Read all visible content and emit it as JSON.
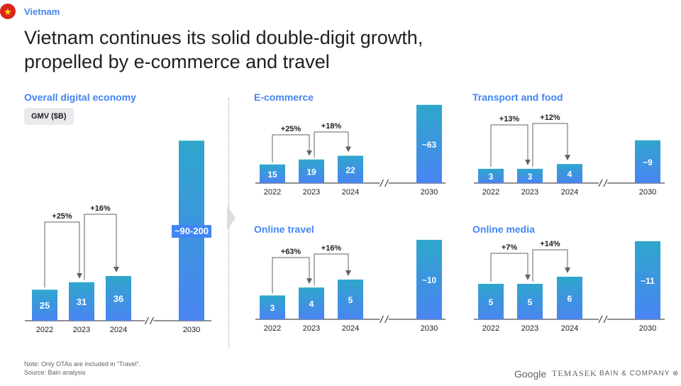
{
  "header": {
    "country": "Vietnam",
    "title_line1": "Vietnam continues its solid double-digit growth,",
    "title_line2": "propelled by e-commerce and travel",
    "flag_star": "★"
  },
  "unit_label": "GMV ($B)",
  "footnote": {
    "note": "Note: Only OTAs are included in “Travel”.",
    "source": "Source: Bain analysis"
  },
  "logos": {
    "google": "Google",
    "temasek": "TEMASEK",
    "bain": "BAIN & COMPANY ⊕"
  },
  "colors": {
    "accent": "#4285f4",
    "bar_top": "#34a0d0",
    "bar_bottom": "#4a86f0"
  },
  "chart_data": [
    {
      "type": "bar",
      "title": "Overall digital economy",
      "categories": [
        "2022",
        "2023",
        "2024",
        "2030"
      ],
      "values": [
        25,
        31,
        36,
        145
      ],
      "labels": [
        "25",
        "31",
        "36",
        "~90-200"
      ],
      "growth": [
        "+25%",
        "+16%"
      ],
      "axis_break": true
    },
    {
      "type": "bar",
      "title": "E-commerce",
      "categories": [
        "2022",
        "2023",
        "2024",
        "2030"
      ],
      "values": [
        15,
        19,
        22,
        63
      ],
      "labels": [
        "15",
        "19",
        "22",
        "~63"
      ],
      "growth": [
        "+25%",
        "+18%"
      ],
      "axis_break": true
    },
    {
      "type": "bar",
      "title": "Transport and food",
      "categories": [
        "2022",
        "2023",
        "2024",
        "2030"
      ],
      "values": [
        3,
        3,
        4,
        9
      ],
      "labels": [
        "3",
        "3",
        "4",
        "~9"
      ],
      "growth": [
        "+13%",
        "+12%"
      ],
      "axis_break": true
    },
    {
      "type": "bar",
      "title": "Online travel",
      "categories": [
        "2022",
        "2023",
        "2024",
        "2030"
      ],
      "values": [
        3,
        4,
        5,
        10
      ],
      "labels": [
        "3",
        "4",
        "5",
        "~10"
      ],
      "growth": [
        "+63%",
        "+16%"
      ],
      "axis_break": true
    },
    {
      "type": "bar",
      "title": "Online media",
      "categories": [
        "2022",
        "2023",
        "2024",
        "2030"
      ],
      "values": [
        5,
        5,
        6,
        11
      ],
      "labels": [
        "5",
        "5",
        "6",
        "~11"
      ],
      "growth": [
        "+7%",
        "+14%"
      ],
      "axis_break": true
    }
  ]
}
